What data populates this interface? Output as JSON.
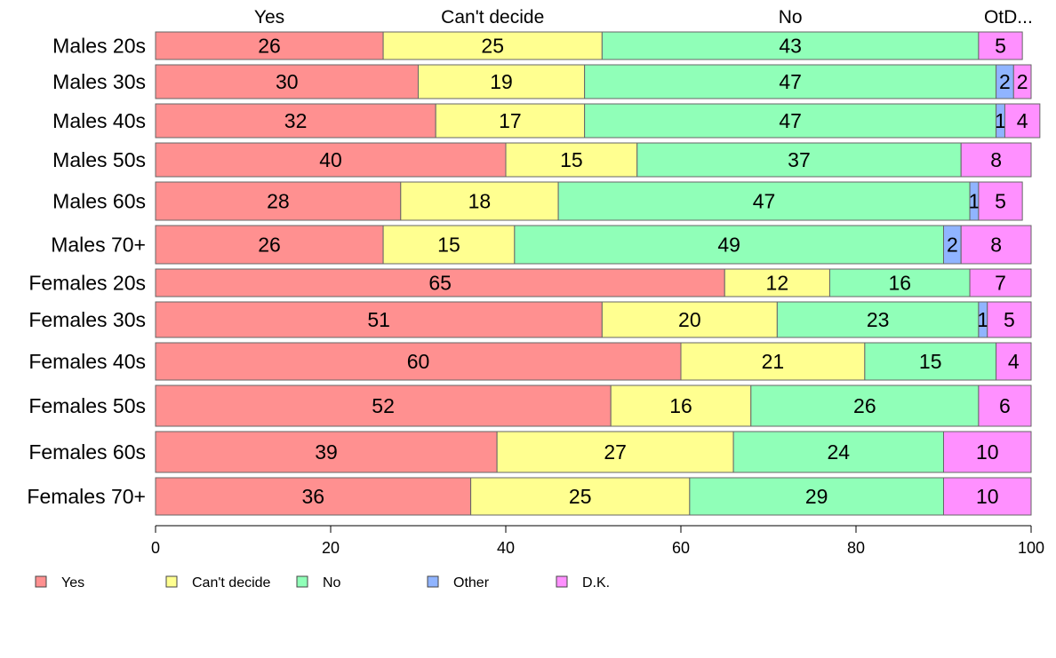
{
  "chart_data": {
    "type": "bar",
    "orientation": "horizontal",
    "stacked": true,
    "categories": [
      "Males 20s",
      "Males 30s",
      "Males 40s",
      "Males 50s",
      "Males 60s",
      "Males 70+",
      "Females 20s",
      "Females 30s",
      "Females 40s",
      "Females 50s",
      "Females 60s",
      "Females 70+"
    ],
    "series": [
      {
        "name": "Yes",
        "color": "#ff9090",
        "values": [
          26,
          30,
          32,
          40,
          28,
          26,
          65,
          51,
          60,
          52,
          39,
          36
        ]
      },
      {
        "name": "Can't decide",
        "color": "#ffff90",
        "values": [
          25,
          19,
          17,
          15,
          18,
          15,
          12,
          20,
          21,
          16,
          27,
          25
        ]
      },
      {
        "name": "No",
        "color": "#90ffb8",
        "values": [
          43,
          47,
          47,
          37,
          47,
          49,
          16,
          23,
          15,
          26,
          24,
          29
        ]
      },
      {
        "name": "Other",
        "color": "#90b4ff",
        "values": [
          0,
          2,
          1,
          0,
          1,
          2,
          0,
          1,
          0,
          0,
          0,
          0
        ]
      },
      {
        "name": "D.K.",
        "color": "#ff90ff",
        "values": [
          5,
          2,
          4,
          8,
          5,
          8,
          7,
          5,
          4,
          6,
          10,
          10
        ]
      }
    ],
    "top_labels": [
      "Yes",
      "Can't decide",
      "No",
      "OtD..."
    ],
    "xlim": [
      0,
      100
    ],
    "xticks": [
      0,
      20,
      40,
      60,
      80,
      100
    ],
    "legend": {
      "placement": "bottom-left",
      "entries": [
        "Yes",
        "Can't decide",
        "No",
        "Other",
        "D.K."
      ]
    },
    "grid": false,
    "title": "",
    "xlabel": "",
    "ylabel": ""
  }
}
